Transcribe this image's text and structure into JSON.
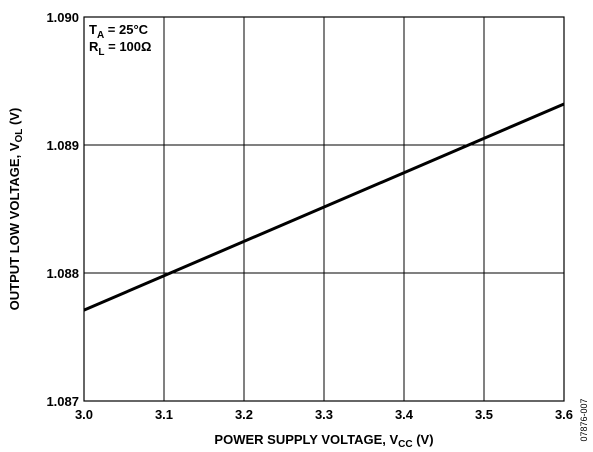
{
  "chart_data": {
    "type": "line",
    "x": [
      3.0,
      3.6
    ],
    "series": [
      {
        "values": [
          1.08771,
          1.08932
        ]
      }
    ],
    "xlim": [
      3.0,
      3.6
    ],
    "ylim": [
      1.087,
      1.09
    ],
    "x_ticks": [
      "3.0",
      "3.1",
      "3.2",
      "3.3",
      "3.4",
      "3.5",
      "3.6"
    ],
    "y_ticks": [
      "1.090",
      "1.089",
      "1.088",
      "1.087"
    ],
    "xlabel": {
      "main": "POWER SUPPLY VOLTAGE, V",
      "sub": "CC",
      "unit": " (V)"
    },
    "ylabel": {
      "main": "OUTPUT LOW VOLTAGE, V",
      "sub": "OL",
      "unit": " (V)"
    },
    "grid": true,
    "annotations": [
      {
        "main": "T",
        "sub": "A",
        "rest": " = 25°C"
      },
      {
        "main": "R",
        "sub": "L",
        "rest": " = 100Ω"
      }
    ],
    "side_code": "07876-007"
  }
}
